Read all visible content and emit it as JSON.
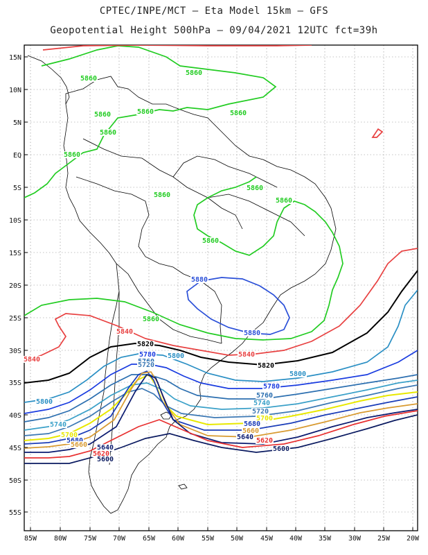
{
  "title_line1": "CPTEC/INPE/MCT –  Eta Model 15km – GFS",
  "title_line2": "Geopotential Height 500hPa – 09/04/2021 12UTC fct=39h",
  "lat_labels": [
    "15N",
    "10N",
    "5N",
    "EQ",
    "5S",
    "10S",
    "15S",
    "20S",
    "25S",
    "30S",
    "35S",
    "40S",
    "45S",
    "50S",
    "55S"
  ],
  "lon_labels": [
    "85W",
    "80W",
    "75W",
    "70W",
    "65W",
    "60W",
    "55W",
    "50W",
    "45W",
    "40W",
    "35W",
    "30W",
    "25W",
    "20W"
  ],
  "colors": {
    "c5880": "#2a4fd8",
    "c5860": "#22cc22",
    "c5840": "#e84040",
    "c5820": "#000000",
    "c5800": "#2a8fc4",
    "c5780": "#1a3ce0",
    "c5760": "#2c6fb0",
    "c5740": "#3aa0c8",
    "c5720": "#3c78b4",
    "c5700": "#e8e800",
    "c5680": "#1a3cb8",
    "c5660": "#d89a30",
    "c5640": "#0a1a70",
    "c5620": "#e83030",
    "c5600": "#0a1a60",
    "coast": "#000000",
    "grid": "#888888"
  },
  "contour_labels": [
    {
      "text": "5860",
      "color": "c5860"
    },
    {
      "text": "5860",
      "color": "c5860"
    },
    {
      "text": "5860",
      "color": "c5860"
    },
    {
      "text": "5860",
      "color": "c5860"
    },
    {
      "text": "5860",
      "color": "c5860"
    },
    {
      "text": "5860",
      "color": "c5860"
    },
    {
      "text": "5860",
      "color": "c5860"
    },
    {
      "text": "5860",
      "color": "c5860"
    },
    {
      "text": "5860",
      "color": "c5860"
    },
    {
      "text": "5860",
      "color": "c5860"
    },
    {
      "text": "5860",
      "color": "c5860"
    },
    {
      "text": "5860",
      "color": "c5860"
    },
    {
      "text": "5880",
      "color": "c5880"
    },
    {
      "text": "5880",
      "color": "c5880"
    },
    {
      "text": "5840",
      "color": "c5840"
    },
    {
      "text": "5840",
      "color": "c5840"
    },
    {
      "text": "5840",
      "color": "c5840"
    },
    {
      "text": "5820",
      "color": "c5820"
    },
    {
      "text": "5820",
      "color": "c5820"
    },
    {
      "text": "5800",
      "color": "c5800"
    },
    {
      "text": "5800",
      "color": "c5800"
    },
    {
      "text": "5800",
      "color": "c5800"
    },
    {
      "text": "5780",
      "color": "c5780"
    },
    {
      "text": "5780",
      "color": "c5780"
    },
    {
      "text": "5760",
      "color": "c5760"
    },
    {
      "text": "5760",
      "color": "c5760"
    },
    {
      "text": "5740",
      "color": "c5740"
    },
    {
      "text": "5740",
      "color": "c5740"
    },
    {
      "text": "5720",
      "color": "c5720"
    },
    {
      "text": "5720",
      "color": "c5720"
    },
    {
      "text": "5700",
      "color": "c5700"
    },
    {
      "text": "5700",
      "color": "c5700"
    },
    {
      "text": "5680",
      "color": "c5680"
    },
    {
      "text": "5680",
      "color": "c5680"
    },
    {
      "text": "5660",
      "color": "c5660"
    },
    {
      "text": "5660",
      "color": "c5660"
    },
    {
      "text": "5640",
      "color": "c5640"
    },
    {
      "text": "5640",
      "color": "c5640"
    },
    {
      "text": "5620",
      "color": "c5620"
    },
    {
      "text": "5620",
      "color": "c5620"
    },
    {
      "text": "5600",
      "color": "c5600"
    },
    {
      "text": "5600",
      "color": "c5600"
    }
  ]
}
